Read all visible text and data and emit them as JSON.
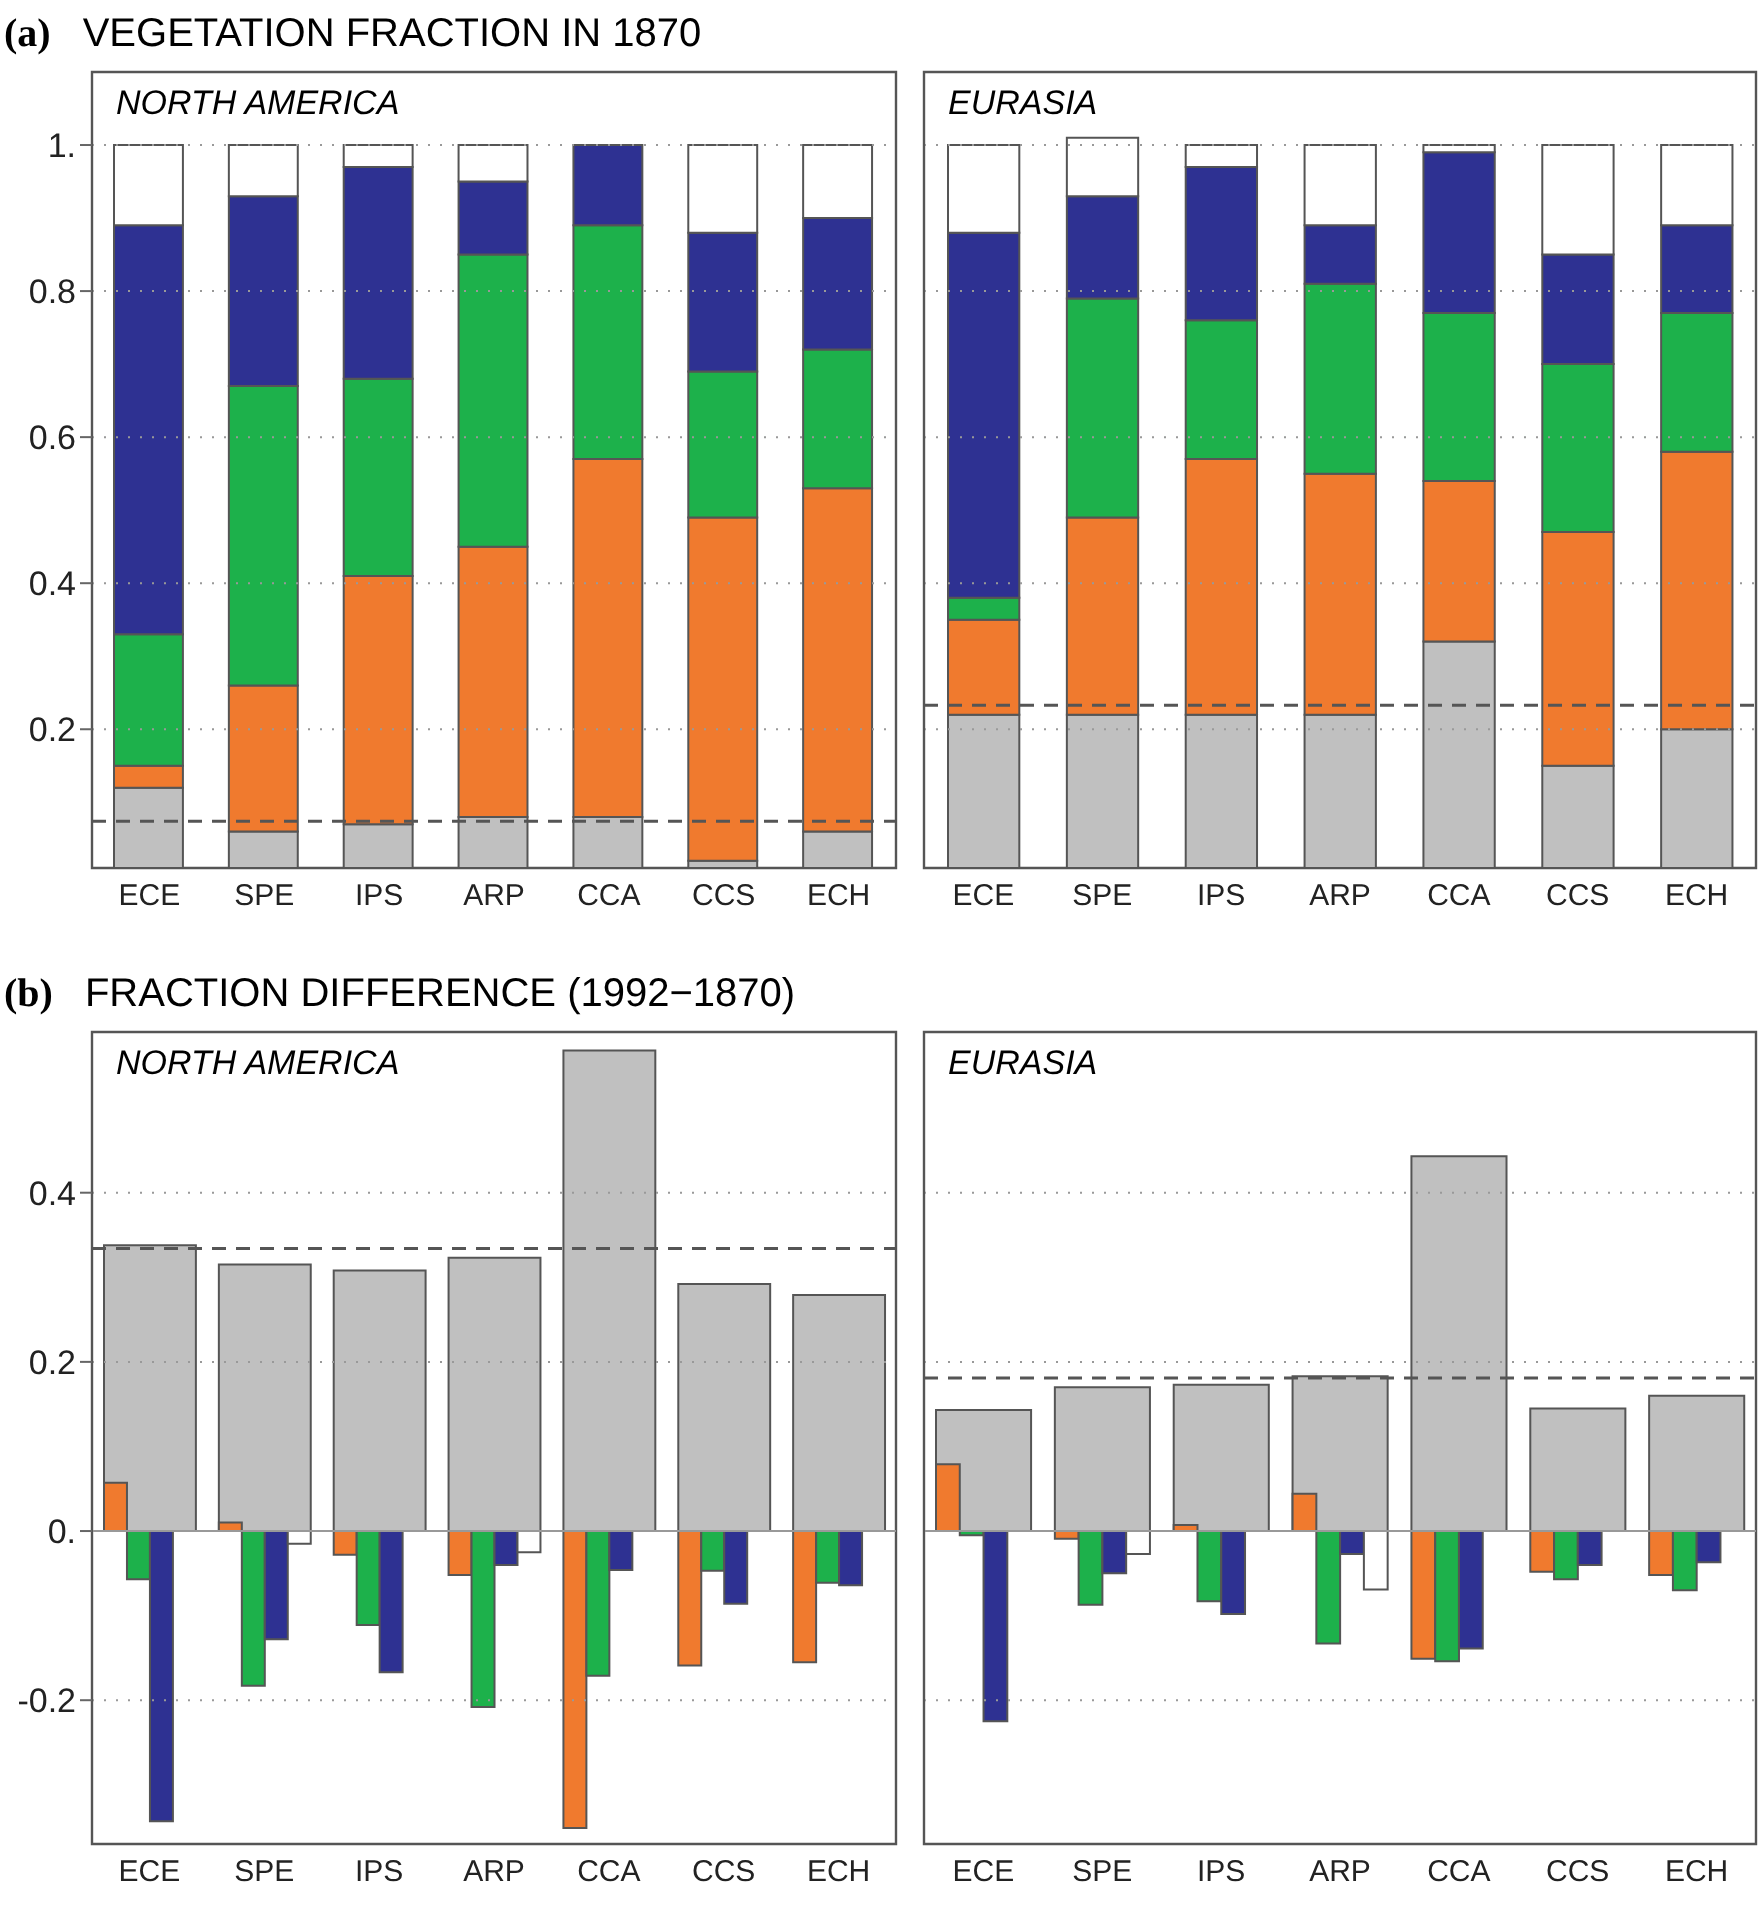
{
  "chart_data": [
    {
      "type": "bar",
      "title": "VEGETATION FRACTION IN 1870",
      "subtitle": "NORTH AMERICA",
      "annotations": [
        "(a)"
      ],
      "stacked": true,
      "grid": "y",
      "categories": [
        "ECE",
        "SPE",
        "IPS",
        "ARP",
        "CCA",
        "CCS",
        "ECH"
      ],
      "ylim": [
        0.01,
        1.1
      ],
      "yticks": [
        {
          "value": 0.2,
          "label": "0.2"
        },
        {
          "value": 0.4,
          "label": "0.4"
        },
        {
          "value": 0.6,
          "label": "0.6"
        },
        {
          "value": 0.8,
          "label": "0.8"
        },
        {
          "value": 1,
          "label": "1."
        }
      ],
      "series": [
        {
          "color": "#c0c0c0",
          "values": [
            0.12,
            0.06,
            0.07,
            0.08,
            0.08,
            0.02,
            0.06
          ]
        },
        {
          "color": "#f07a2e",
          "values": [
            0.03,
            0.2,
            0.34,
            0.37,
            0.49,
            0.47,
            0.47
          ]
        },
        {
          "color": "#1db14b",
          "values": [
            0.18,
            0.41,
            0.27,
            0.4,
            0.32,
            0.2,
            0.19
          ]
        },
        {
          "color": "#2e3192",
          "values": [
            0.56,
            0.26,
            0.29,
            0.1,
            0.11,
            0.19,
            0.18
          ]
        },
        {
          "color": "#ffffff",
          "values": [
            0.11,
            0.07,
            0.03,
            0.05,
            null,
            0.12,
            0.1
          ]
        }
      ],
      "ref_lines": [
        {
          "axis": "y",
          "value": 0.074,
          "color": "#555555",
          "line_style": "dashed"
        }
      ]
    },
    {
      "type": "bar",
      "subtitle": "EURASIA",
      "stacked": true,
      "grid": "y",
      "tick_labels": "x",
      "categories": [
        "ECE",
        "SPE",
        "IPS",
        "ARP",
        "CCA",
        "CCS",
        "ECH"
      ],
      "ylim": [
        0.01,
        1.1
      ],
      "yticks": [
        0.2,
        0.4,
        0.6,
        0.8,
        1
      ],
      "series": [
        {
          "color": "#c0c0c0",
          "values": [
            0.22,
            0.22,
            0.22,
            0.22,
            0.32,
            0.15,
            0.2
          ]
        },
        {
          "color": "#f07a2e",
          "values": [
            0.13,
            0.27,
            0.35,
            0.33,
            0.22,
            0.32,
            0.38
          ]
        },
        {
          "color": "#1db14b",
          "values": [
            0.03,
            0.3,
            0.19,
            0.26,
            0.23,
            0.23,
            0.19
          ]
        },
        {
          "color": "#2e3192",
          "values": [
            0.5,
            0.14,
            0.21,
            0.08,
            0.22,
            0.15,
            0.12
          ]
        },
        {
          "color": "#ffffff",
          "values": [
            0.12,
            0.08,
            0.03,
            0.11,
            0.01,
            0.15,
            0.11
          ]
        }
      ],
      "ref_lines": [
        {
          "axis": "y",
          "value": 0.233,
          "color": "#555555",
          "line_style": "dashed"
        }
      ]
    },
    {
      "type": "bar",
      "title": "FRACTION DIFFERENCE (1992−1870)",
      "subtitle": "NORTH AMERICA",
      "annotations": [
        "(b)"
      ],
      "grid": "y",
      "categories": [
        "ECE",
        "SPE",
        "IPS",
        "ARP",
        "CCA",
        "CCS",
        "ECH"
      ],
      "ylim": [
        -0.37,
        0.59
      ],
      "yticks": [
        {
          "value": -0.2,
          "label": "-0.2"
        },
        {
          "value": 0,
          "label": "0."
        },
        {
          "value": 0.2,
          "label": "0.2"
        },
        {
          "value": 0.4,
          "label": "0.4"
        }
      ],
      "series": [
        {
          "color": "#c0c0c0",
          "values": [
            0.338,
            0.315,
            0.308,
            0.323,
            0.568,
            0.292,
            0.279
          ]
        },
        {
          "color": "#f07a2e",
          "values": [
            0.057,
            0.01,
            -0.028,
            -0.052,
            -0.351,
            -0.159,
            -0.155
          ]
        },
        {
          "color": "#1db14b",
          "values": [
            -0.057,
            -0.183,
            -0.111,
            -0.208,
            -0.171,
            -0.047,
            -0.061
          ]
        },
        {
          "color": "#2e3192",
          "values": [
            -0.343,
            -0.128,
            -0.167,
            -0.04,
            -0.046,
            -0.086,
            -0.064
          ]
        },
        {
          "color": "#ffffff",
          "values": [
            0,
            -0.015,
            0,
            -0.025,
            0,
            0,
            0
          ]
        }
      ],
      "ref_lines": [
        {
          "axis": "y",
          "value": 0.334,
          "color": "#555555",
          "line_style": "dashed"
        }
      ]
    },
    {
      "type": "bar",
      "subtitle": "EURASIA",
      "grid": "y",
      "tick_labels": "x",
      "categories": [
        "ECE",
        "SPE",
        "IPS",
        "ARP",
        "CCA",
        "CCS",
        "ECH"
      ],
      "ylim": [
        -0.37,
        0.59
      ],
      "yticks": [
        -0.2,
        0,
        0.2,
        0.4
      ],
      "series": [
        {
          "color": "#c0c0c0",
          "values": [
            0.143,
            0.17,
            0.173,
            0.183,
            0.443,
            0.145,
            0.16
          ]
        },
        {
          "color": "#f07a2e",
          "values": [
            0.079,
            -0.009,
            0.007,
            0.044,
            -0.151,
            -0.048,
            -0.052
          ]
        },
        {
          "color": "#1db14b",
          "values": [
            -0.005,
            -0.087,
            -0.083,
            -0.133,
            -0.154,
            -0.057,
            -0.07
          ]
        },
        {
          "color": "#2e3192",
          "values": [
            -0.225,
            -0.05,
            -0.098,
            -0.027,
            -0.139,
            -0.04,
            -0.037
          ]
        },
        {
          "color": "#ffffff",
          "values": [
            0,
            -0.027,
            0,
            -0.069,
            0,
            0,
            0
          ]
        }
      ],
      "ref_lines": [
        {
          "axis": "y",
          "value": 0.181,
          "color": "#555555",
          "line_style": "dashed"
        }
      ]
    }
  ]
}
